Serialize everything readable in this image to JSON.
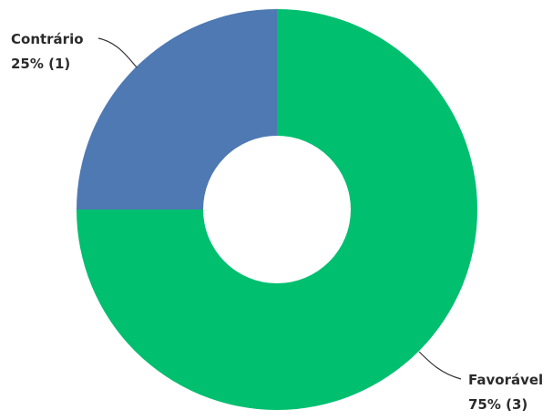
{
  "chart_data": {
    "type": "pie",
    "variant": "donut",
    "title": "",
    "slices": [
      {
        "label": "Contrário",
        "value": 1,
        "percent_label": "25% (1)",
        "color": "#4E79B3"
      },
      {
        "label": "Favorável",
        "value": 3,
        "percent_label": "75% (3)",
        "color": "#00BF6F"
      }
    ],
    "legend": "none"
  }
}
